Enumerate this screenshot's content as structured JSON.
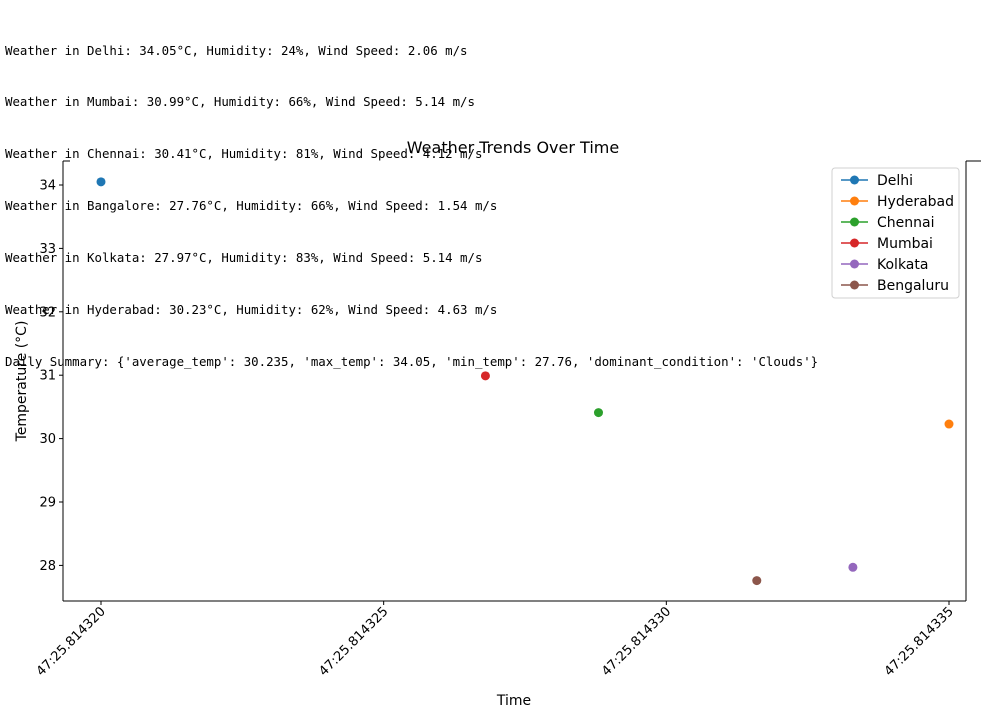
{
  "console": {
    "lines": [
      "Weather in Delhi: 34.05°C, Humidity: 24%, Wind Speed: 2.06 m/s",
      "Weather in Mumbai: 30.99°C, Humidity: 66%, Wind Speed: 5.14 m/s",
      "Weather in Chennai: 30.41°C, Humidity: 81%, Wind Speed: 4.12 m/s",
      "Weather in Bangalore: 27.76°C, Humidity: 66%, Wind Speed: 1.54 m/s",
      "Weather in Kolkata: 27.97°C, Humidity: 83%, Wind Speed: 5.14 m/s",
      "Weather in Hyderabad: 30.23°C, Humidity: 62%, Wind Speed: 4.63 m/s",
      "Daily Summary: {'average_temp': 30.235, 'max_temp': 34.05, 'min_temp': 27.76, 'dominant_condition': 'Clouds'}"
    ]
  },
  "chart_data": {
    "type": "line",
    "title": "Weather Trends Over Time",
    "xlabel": "Time",
    "ylabel": "Temperature (°C)",
    "x_ticks": [
      "47:25.814320",
      "47:25.814325",
      "47:25.814330",
      "47:25.814335"
    ],
    "y_ticks": [
      "28",
      "29",
      "30",
      "31",
      "32",
      "33",
      "34"
    ],
    "ylim": [
      27.5,
      34.4
    ],
    "grid": false,
    "legend_position": "top-right",
    "series": [
      {
        "name": "Delhi",
        "color": "#1f77b4",
        "x": [
          320.0
        ],
        "y": [
          34.05
        ]
      },
      {
        "name": "Hyderabad",
        "color": "#ff7f0e",
        "x": [
          335.0
        ],
        "y": [
          30.23
        ]
      },
      {
        "name": "Chennai",
        "color": "#2ca02c",
        "x": [
          328.8
        ],
        "y": [
          30.41
        ]
      },
      {
        "name": "Mumbai",
        "color": "#d62728",
        "x": [
          326.8
        ],
        "y": [
          30.99
        ]
      },
      {
        "name": "Kolkata",
        "color": "#9467bd",
        "x": [
          333.3
        ],
        "y": [
          27.97
        ]
      },
      {
        "name": "Bengaluru",
        "color": "#8c564b",
        "x": [
          331.6
        ],
        "y": [
          27.76
        ]
      }
    ]
  }
}
